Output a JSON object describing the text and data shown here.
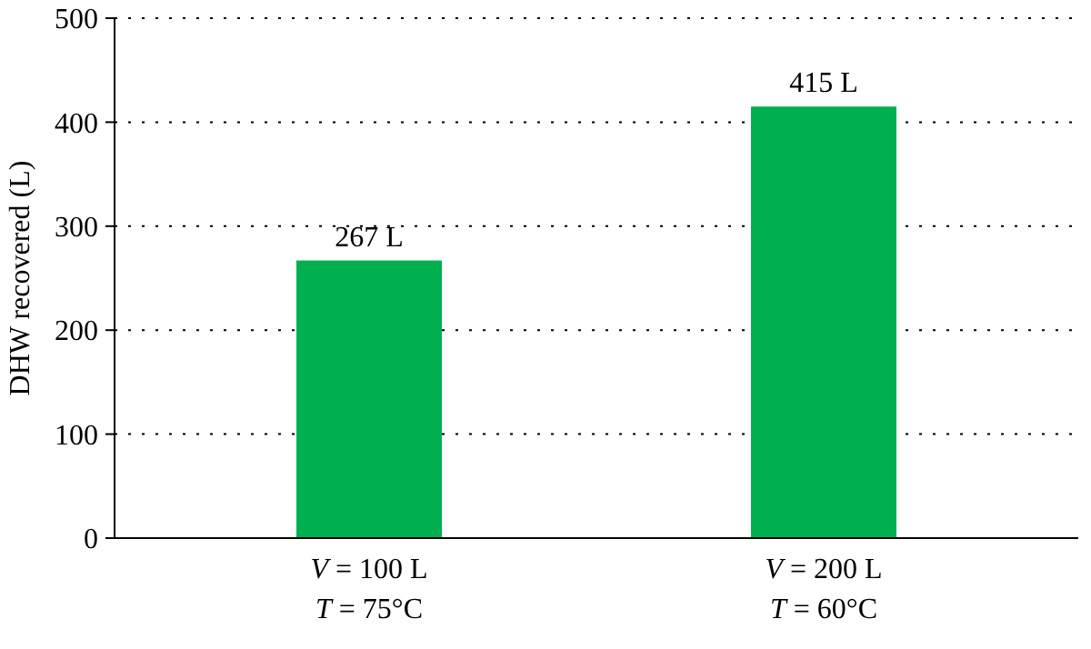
{
  "chart_data": {
    "type": "bar",
    "ylabel": "DHW recovered (L)",
    "categories": [
      "V = 100 L\nT = 75°C",
      "V = 200 L\nT = 60°C"
    ],
    "values": [
      267,
      415
    ],
    "value_labels": [
      "267 L",
      "415 L"
    ],
    "color": "#00b050",
    "ylim": [
      0,
      500
    ],
    "yticks": [
      0,
      100,
      200,
      300,
      400,
      500
    ],
    "grid": "y"
  }
}
